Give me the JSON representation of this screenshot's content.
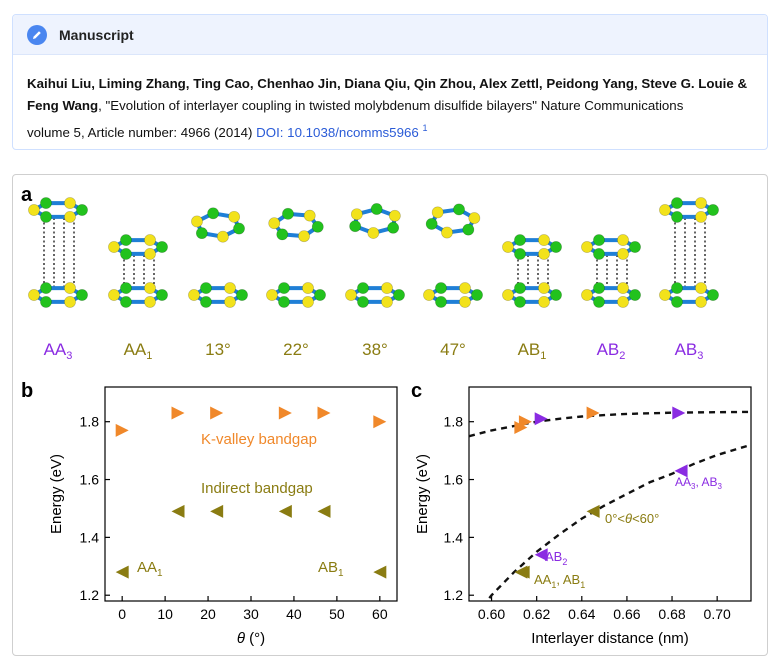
{
  "manuscript": {
    "heading": "Manuscript",
    "icon": "pencil-icon",
    "authors_line1": "Kaihui Liu, Liming Zhang, Ting Cao, Chenhao Jin, Diana Qiu, Qin Zhou, Alex Zettl, Peidong Yang, Steve G. Louie &",
    "authors_line2": "Feng Wang",
    "title_text": ", \"Evolution of interlayer coupling in twisted molybdenum disulfide bilayers\" Nature Communications",
    "citation": "volume 5, Article number: 4966 (2014)",
    "doi_text": "DOI: 10.1038/ncomms5966",
    "footnote": "1"
  },
  "colors": {
    "accent": "#4a86f0",
    "olive": "#8a7c12",
    "purple": "#8a2be2",
    "orange": "#f0882a",
    "mo_green": "#22c21d",
    "s_yellow": "#f2e21b",
    "bond_blue": "#1f7fd6"
  },
  "panels": {
    "a_label": "a",
    "b_label": "b",
    "c_label": "c"
  },
  "panel_a": {
    "structures": [
      {
        "base": "AA",
        "sub": "3",
        "color": "purple"
      },
      {
        "base": "AA",
        "sub": "1",
        "color": "olive"
      },
      {
        "base": "13°",
        "sub": "",
        "color": "olive"
      },
      {
        "base": "22°",
        "sub": "",
        "color": "olive"
      },
      {
        "base": "38°",
        "sub": "",
        "color": "olive"
      },
      {
        "base": "47°",
        "sub": "",
        "color": "olive"
      },
      {
        "base": "AB",
        "sub": "1",
        "color": "olive"
      },
      {
        "base": "AB",
        "sub": "2",
        "color": "purple"
      },
      {
        "base": "AB",
        "sub": "3",
        "color": "purple"
      }
    ]
  },
  "chart_data": [
    {
      "type": "scatter",
      "panel": "b",
      "xlabel": "θ (°)",
      "ylabel": "Energy (eV)",
      "xlim": [
        -4,
        64
      ],
      "ylim": [
        1.18,
        1.92
      ],
      "xticks": [
        0,
        10,
        20,
        30,
        40,
        50,
        60
      ],
      "yticks": [
        1.2,
        1.4,
        1.6,
        1.8
      ],
      "ytick_labels": [
        "1.2",
        "1.4",
        "1.6",
        "1.8"
      ],
      "series": [
        {
          "name": "K-valley bandgap",
          "marker": "triangle-right",
          "color": "orange",
          "x": [
            0,
            13,
            22,
            38,
            47,
            60
          ],
          "y": [
            1.77,
            1.83,
            1.83,
            1.83,
            1.83,
            1.8
          ]
        },
        {
          "name": "Indirect bandgap",
          "marker": "triangle-left",
          "color": "olive",
          "x": [
            0,
            13,
            22,
            38,
            47,
            60
          ],
          "y": [
            1.28,
            1.49,
            1.49,
            1.49,
            1.49,
            1.28
          ]
        }
      ],
      "annotations": [
        {
          "base": "AA",
          "sub": "1",
          "color": "olive"
        },
        {
          "base": "AB",
          "sub": "1",
          "color": "olive"
        }
      ]
    },
    {
      "type": "scatter",
      "panel": "c",
      "xlabel": "Interlayer distance (nm)",
      "ylabel": "Energy (eV)",
      "xlim": [
        0.59,
        0.715
      ],
      "ylim": [
        1.18,
        1.92
      ],
      "xticks": [
        0.6,
        0.62,
        0.64,
        0.66,
        0.68,
        0.7
      ],
      "xtick_labels": [
        "0.60",
        "0.62",
        "0.64",
        "0.66",
        "0.68",
        "0.70"
      ],
      "yticks": [
        1.2,
        1.4,
        1.6,
        1.8
      ],
      "ytick_labels": [
        "1.2",
        "1.4",
        "1.6",
        "1.8"
      ],
      "series": [
        {
          "marker": "triangle-right",
          "color": "orange",
          "x": [
            0.613,
            0.615,
            0.645
          ],
          "y": [
            1.78,
            1.8,
            1.83
          ]
        },
        {
          "marker": "triangle-right",
          "color": "purple",
          "x": [
            0.622,
            0.683
          ],
          "y": [
            1.81,
            1.83
          ]
        },
        {
          "marker": "triangle-left",
          "color": "olive",
          "x": [
            0.613,
            0.614,
            0.645
          ],
          "y": [
            1.28,
            1.28,
            1.49
          ]
        },
        {
          "marker": "triangle-left",
          "color": "purple",
          "x": [
            0.622,
            0.684
          ],
          "y": [
            1.34,
            1.63
          ]
        }
      ],
      "fit_curves": [
        {
          "style": "dashed",
          "x": [
            0.59,
            0.6,
            0.61,
            0.62,
            0.63,
            0.64,
            0.65,
            0.66,
            0.67,
            0.68,
            0.69,
            0.7,
            0.715
          ],
          "y": [
            1.75,
            1.77,
            1.785,
            1.8,
            1.81,
            1.818,
            1.823,
            1.827,
            1.829,
            1.831,
            1.832,
            1.833,
            1.834
          ]
        },
        {
          "style": "dashed",
          "x": [
            0.59,
            0.6,
            0.61,
            0.62,
            0.63,
            0.64,
            0.65,
            0.66,
            0.67,
            0.68,
            0.69,
            0.7,
            0.715
          ],
          "y": [
            1.1,
            1.2,
            1.28,
            1.35,
            1.41,
            1.465,
            1.51,
            1.55,
            1.59,
            1.62,
            1.655,
            1.685,
            1.72
          ]
        }
      ],
      "annotations": [
        {
          "text": "AA",
          "sub": "3",
          "text2": ", AB",
          "sub2": "3",
          "color": "purple"
        },
        {
          "text": "0°<",
          "italic": "θ",
          "text2": "<60°",
          "color": "olive"
        },
        {
          "text": "AB",
          "sub": "2",
          "color": "purple"
        },
        {
          "text": "AA",
          "sub": "1",
          "text2": ", AB",
          "sub2": "1",
          "color": "olive"
        }
      ]
    }
  ]
}
